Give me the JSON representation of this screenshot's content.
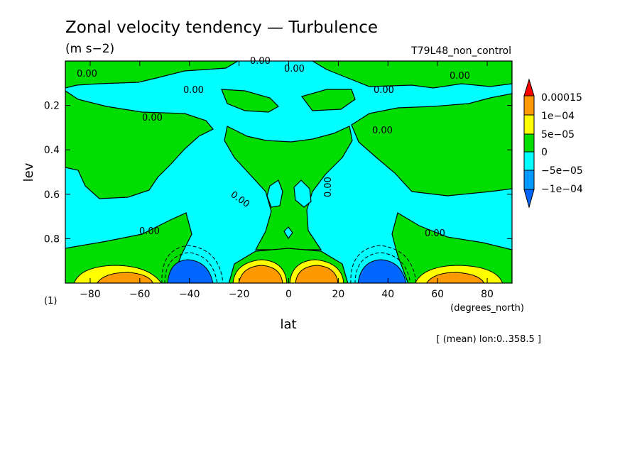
{
  "chart_data": {
    "type": "heatmap",
    "title": "Zonal velocity tendency — Turbulence",
    "subtitle": "(m s−2)",
    "run_label": "T79L48_non_control",
    "xlabel": "lat",
    "x_units": "(degrees_north)",
    "ylabel": "lev",
    "y_units": "(1)",
    "footnote": "[ (mean) lon:0..358.5 ]",
    "xlim": [
      -90,
      90
    ],
    "ylim": [
      0.0,
      1.0
    ],
    "y_inverted": true,
    "x_ticks": [
      -80,
      -60,
      -40,
      -20,
      0,
      20,
      40,
      60,
      80
    ],
    "x_tick_labels": [
      "−80",
      "−60",
      "−40",
      "−20",
      "0",
      "20",
      "40",
      "60",
      "80"
    ],
    "y_ticks": [
      0.2,
      0.4,
      0.6,
      0.8
    ],
    "y_tick_labels": [
      "0.2",
      "0.4",
      "0.6",
      "0.8"
    ],
    "colorbar": {
      "levels": [
        {
          "label": "0.00015",
          "value": 0.00015,
          "color": "#ff0000"
        },
        {
          "label": "1e−04",
          "value": 0.0001,
          "color": "#ff9900"
        },
        {
          "label": "5e−05",
          "value": 5e-05,
          "color": "#ffff00"
        },
        {
          "label": "0",
          "value": 0,
          "color": "#00dd00"
        },
        {
          "label": "−5e−05",
          "value": -5e-05,
          "color": "#00ffff"
        },
        {
          "label": "−1e−04",
          "value": -0.0001,
          "color": "#0080ff"
        }
      ],
      "fill_order_bottom_to_top": [
        "#0066ff",
        "#0099ff",
        "#00ffff",
        "#00dd00",
        "#ffff00",
        "#ff9900",
        "#ff0000"
      ]
    },
    "contour_labels": [
      "0.00",
      "0.00",
      "0.00",
      "0.00",
      "0.00",
      "0.00",
      "0.00",
      "0.00",
      "0.00",
      "0.00",
      "0.00"
    ],
    "features": [
      {
        "kind": "min",
        "lat": -40,
        "lev": 0.93,
        "level": -0.0001
      },
      {
        "kind": "min",
        "lat": 40,
        "lev": 0.93,
        "level": -0.0001
      },
      {
        "kind": "max",
        "lat": -60,
        "lev": 0.95,
        "level": 0.0001
      },
      {
        "kind": "max",
        "lat": -13,
        "lev": 0.93,
        "level": 0.0001
      },
      {
        "kind": "max",
        "lat": 13,
        "lev": 0.93,
        "level": 0.0001
      },
      {
        "kind": "max",
        "lat": 62,
        "lev": 0.95,
        "level": 0.0001
      }
    ]
  }
}
